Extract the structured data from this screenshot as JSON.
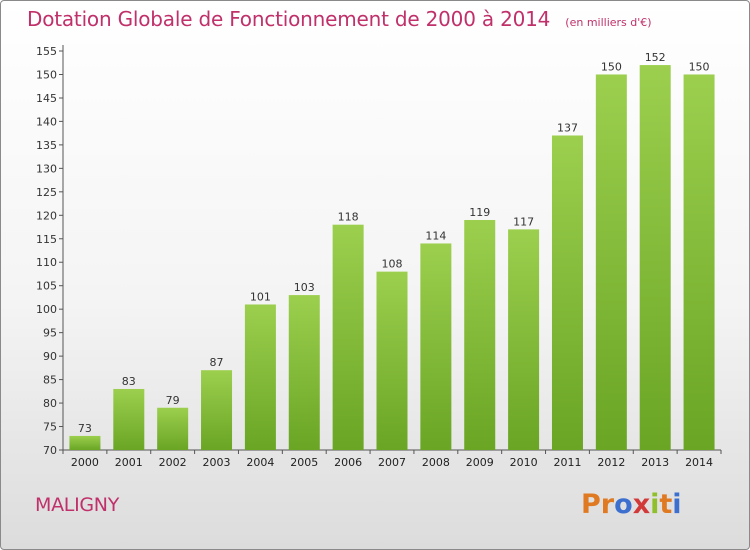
{
  "header": {
    "title": "Dotation Globale de Fonctionnement de 2000 à 2014",
    "subtitle": "(en milliers d'€)"
  },
  "footer": {
    "commune": "MALIGNY",
    "logo_text": "Proxiti"
  },
  "colors": {
    "bar_light": "#9ccf4e",
    "bar_dark": "#6aa524",
    "title": "#c0306a",
    "logo_letters": [
      "#e07a22",
      "#e07a22",
      "#3d6fcf",
      "#d23a3a",
      "#8fbf2a",
      "#e07a22",
      "#3d6fcf"
    ]
  },
  "chart_data": {
    "type": "bar",
    "categories": [
      "2000",
      "2001",
      "2002",
      "2003",
      "2004",
      "2005",
      "2006",
      "2007",
      "2008",
      "2009",
      "2010",
      "2011",
      "2012",
      "2013",
      "2014"
    ],
    "values": [
      73,
      83,
      79,
      87,
      101,
      103,
      118,
      108,
      114,
      119,
      117,
      137,
      150,
      152,
      150
    ],
    "title": "Dotation Globale de Fonctionnement de 2000 à 2014",
    "subtitle": "(en milliers d'€)",
    "xlabel": "",
    "ylabel": "",
    "ylim": [
      70,
      155
    ],
    "yticks": [
      70,
      75,
      80,
      85,
      90,
      95,
      100,
      105,
      110,
      115,
      120,
      125,
      130,
      135,
      140,
      145,
      150,
      155
    ],
    "grid": false,
    "legend": "none"
  }
}
